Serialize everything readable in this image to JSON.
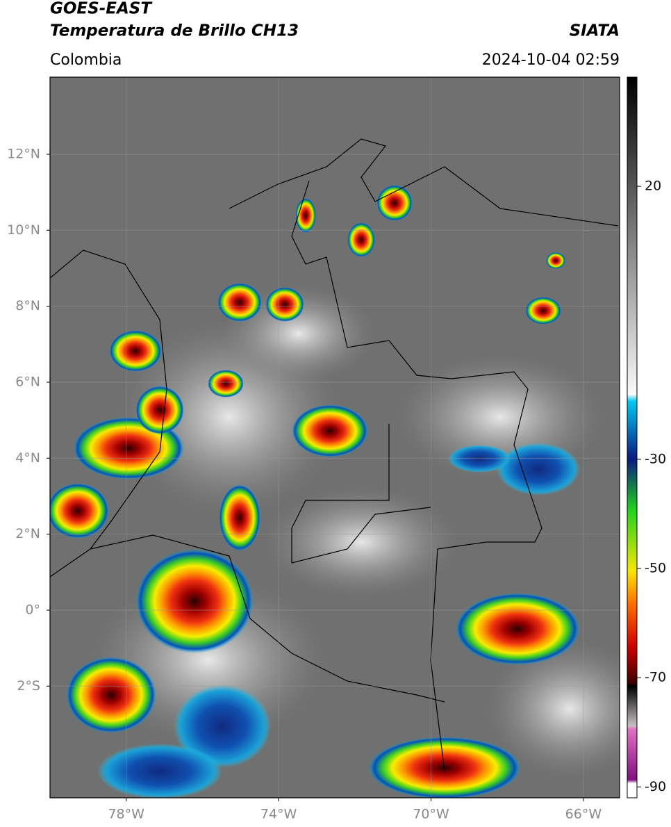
{
  "header": {
    "title": "GOES-EAST",
    "subtitle": "Temperatura de Brillo CH13",
    "source": "SIATA",
    "region": "Colombia",
    "datetime": "2024-10-04 02:59"
  },
  "map": {
    "lat_range": [
      -4.94,
      14.03
    ],
    "lon_range": [
      -80,
      -65.05
    ],
    "lat_ticks": [
      {
        "value": 12,
        "label": "12°N"
      },
      {
        "value": 10,
        "label": "10°N"
      },
      {
        "value": 8,
        "label": "8°N"
      },
      {
        "value": 6,
        "label": "6°N"
      },
      {
        "value": 4,
        "label": "4°N"
      },
      {
        "value": 2,
        "label": "2°N"
      },
      {
        "value": 0,
        "label": "0°"
      },
      {
        "value": -2,
        "label": "2°S"
      }
    ],
    "lon_ticks": [
      {
        "value": -78,
        "label": "78°W"
      },
      {
        "value": -74,
        "label": "74°W"
      },
      {
        "value": -70,
        "label": "70°W"
      },
      {
        "value": -66,
        "label": "66°W"
      }
    ]
  },
  "colorbar": {
    "range": [
      -92,
      40
    ],
    "ticks": [
      20,
      -30,
      -50,
      -70,
      -90
    ]
  }
}
